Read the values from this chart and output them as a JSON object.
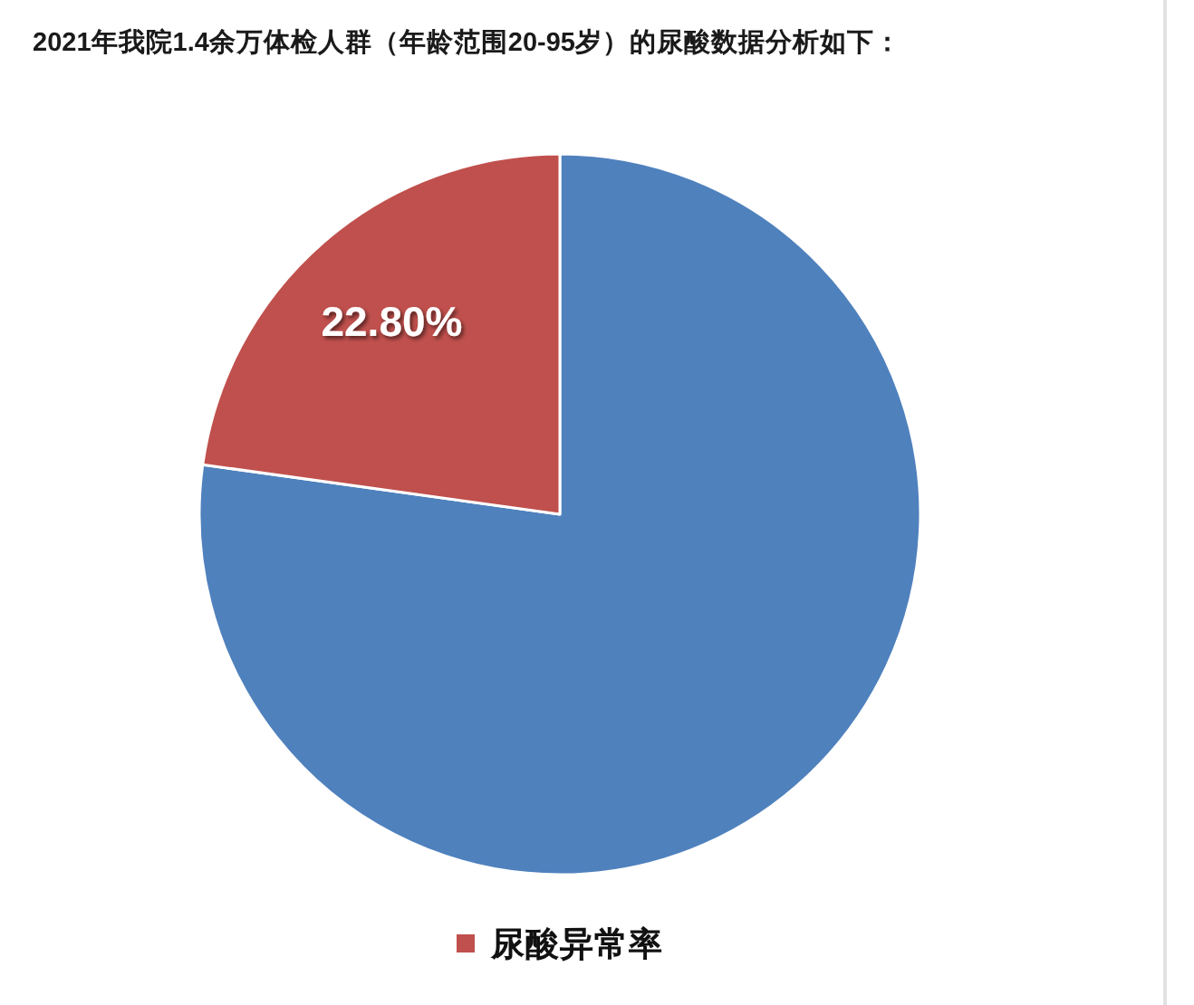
{
  "chart_data": {
    "type": "pie",
    "title": "2021年我院1.4余万体检人群（年龄范围20-95岁）的尿酸数据分析如下：",
    "categories": [
      null,
      "尿酸异常率"
    ],
    "values": [
      77.2,
      22.8
    ],
    "colors": [
      "#4f81bd",
      "#c0504d"
    ],
    "value_labels": [
      null,
      "22.80%"
    ],
    "legend": "bottom"
  }
}
